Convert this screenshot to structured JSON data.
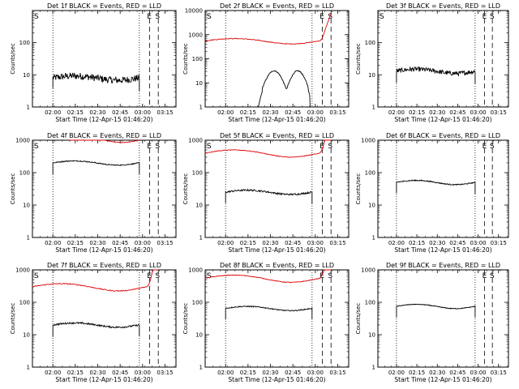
{
  "chart_data": [
    {
      "type": "line",
      "title": "Det 1f BLACK = Events, RED = LLD",
      "xlabel": "Start Time (12-Apr-15 01:46:20)",
      "ylabel": "Counts/sec",
      "xlim": [
        0,
        5760
      ],
      "ylim": [
        1,
        1000
      ],
      "yscale": "log",
      "ytick_labels": [
        "1",
        "10",
        "100"
      ],
      "xtick_labels": [
        "02:00",
        "02:15",
        "02:30",
        "02:45",
        "03:00",
        "03:15"
      ],
      "xticks": [
        820,
        1720,
        2620,
        3520,
        4420,
        5320
      ],
      "vlines": {
        "dotted": [
          820,
          4290
        ],
        "dashed": [
          0,
          4700,
          5050
        ],
        "dashdot": []
      },
      "markers": [
        {
          "label": "S",
          "x": 0
        },
        {
          "label": "E",
          "x": 4530
        },
        {
          "label": "S",
          "x": 4860
        }
      ],
      "series": [
        {
          "name": "Events",
          "color": "#000000",
          "segments": [
            {
              "x0": 820,
              "x1": 4290,
              "level": 8,
              "noise": 0.22,
              "shape": "flat_end"
            }
          ]
        }
      ]
    },
    {
      "type": "line",
      "title": "Det 2f BLACK = Events, RED = LLD",
      "xlabel": "Start Time (12-Apr-15 01:46:20)",
      "ylabel": "Counts/sec",
      "xlim": [
        0,
        5760
      ],
      "ylim": [
        1,
        10000
      ],
      "yscale": "log",
      "ytick_labels": [
        "1",
        "10",
        "100",
        "1000",
        "10000"
      ],
      "xtick_labels": [
        "02:00",
        "02:15",
        "02:30",
        "02:45",
        "03:00",
        "03:15"
      ],
      "xticks": [
        820,
        1720,
        2620,
        3520,
        4420,
        5320
      ],
      "vlines": {
        "dotted": [
          820,
          4290
        ],
        "dashed": [
          0,
          4700,
          5050
        ],
        "dashdot": []
      },
      "markers": [
        {
          "label": "S",
          "x": 0
        },
        {
          "label": "E",
          "x": 4530
        },
        {
          "label": "S",
          "x": 4860
        }
      ],
      "series": [
        {
          "name": "Events",
          "color": "#000000",
          "segments": [
            {
              "x0": 1420,
              "x1": 4290,
              "level": 30,
              "noise": 0.04,
              "shape": "double_hump"
            }
          ]
        },
        {
          "name": "LLD",
          "color": "#dd0000",
          "segments": [
            {
              "x0": 0,
              "x1": 5050,
              "level": 550,
              "noise": 0.03,
              "shape": "lld_rise"
            }
          ]
        }
      ]
    },
    {
      "type": "line",
      "title": "Det 3f BLACK = Events, RED = LLD",
      "xlabel": "Start Time (12-Apr-15 01:46:20)",
      "ylabel": "Counts/sec",
      "xlim": [
        0,
        5760
      ],
      "ylim": [
        1,
        1000
      ],
      "yscale": "log",
      "ytick_labels": [
        "1",
        "10",
        "100"
      ],
      "xtick_labels": [
        "02:00",
        "02:15",
        "02:30",
        "02:45",
        "03:00",
        "03:15"
      ],
      "xticks": [
        820,
        1720,
        2620,
        3520,
        4420,
        5320
      ],
      "vlines": {
        "dotted": [
          820,
          4290
        ],
        "dashed": [
          0,
          4700,
          5050
        ],
        "dashdot": []
      },
      "markers": [
        {
          "label": "S",
          "x": 0
        },
        {
          "label": "E",
          "x": 4530
        },
        {
          "label": "S",
          "x": 4860
        }
      ],
      "series": [
        {
          "name": "Events",
          "color": "#000000",
          "segments": [
            {
              "x0": 820,
              "x1": 4290,
              "level": 13,
              "noise": 0.14,
              "shape": "flat_end"
            }
          ]
        }
      ]
    },
    {
      "type": "line",
      "title": "Det 4f BLACK = Events, RED = LLD",
      "xlabel": "Start Time (12-Apr-15 01:46:20)",
      "ylabel": "Counts/sec",
      "xlim": [
        0,
        5760
      ],
      "ylim": [
        1,
        1000
      ],
      "yscale": "log",
      "ytick_labels": [
        "1",
        "10",
        "100",
        "1000"
      ],
      "xtick_labels": [
        "02:00",
        "02:15",
        "02:30",
        "02:45",
        "03:00",
        "03:15"
      ],
      "xticks": [
        820,
        1720,
        2620,
        3520,
        4420,
        5320
      ],
      "vlines": {
        "dotted": [
          820,
          4290
        ],
        "dashed": [
          0,
          4700,
          5050
        ],
        "dashdot": []
      },
      "markers": [
        {
          "label": "S",
          "x": 0
        },
        {
          "label": "E",
          "x": 4530
        },
        {
          "label": "S",
          "x": 4860
        }
      ],
      "series": [
        {
          "name": "Events",
          "color": "#000000",
          "segments": [
            {
              "x0": 820,
              "x1": 4290,
              "level": 200,
              "noise": 0.03,
              "shape": "flat_end"
            }
          ]
        },
        {
          "name": "LLD",
          "color": "#dd0000",
          "segments": [
            {
              "x0": 1500,
              "x1": 4290,
              "level": 1000,
              "noise": 0.01,
              "shape": "flat"
            }
          ]
        }
      ]
    },
    {
      "type": "line",
      "title": "Det 5f BLACK = Events, RED = LLD",
      "xlabel": "Start Time (12-Apr-15 01:46:20)",
      "ylabel": "Counts/sec",
      "xlim": [
        0,
        5760
      ],
      "ylim": [
        1,
        1000
      ],
      "yscale": "log",
      "ytick_labels": [
        "1",
        "10",
        "100",
        "1000"
      ],
      "xtick_labels": [
        "02:00",
        "02:15",
        "02:30",
        "02:45",
        "03:00",
        "03:15"
      ],
      "xticks": [
        820,
        1720,
        2620,
        3520,
        4420,
        5320
      ],
      "vlines": {
        "dotted": [
          820,
          4290
        ],
        "dashed": [
          0,
          4700,
          5050
        ],
        "dashdot": []
      },
      "markers": [
        {
          "label": "S",
          "x": 0
        },
        {
          "label": "E",
          "x": 4530
        },
        {
          "label": "S",
          "x": 4860
        }
      ],
      "series": [
        {
          "name": "Events",
          "color": "#000000",
          "segments": [
            {
              "x0": 820,
              "x1": 4290,
              "level": 25,
              "noise": 0.05,
              "shape": "flat_end"
            }
          ]
        },
        {
          "name": "LLD",
          "color": "#dd0000",
          "segments": [
            {
              "x0": 0,
              "x1": 5050,
              "level": 400,
              "noise": 0.02,
              "shape": "lld_rise"
            }
          ]
        }
      ]
    },
    {
      "type": "line",
      "title": "Det 6f BLACK = Events, RED = LLD",
      "xlabel": "Start Time (12-Apr-15 01:46:20)",
      "ylabel": "Counts/sec",
      "xlim": [
        0,
        5760
      ],
      "ylim": [
        1,
        1000
      ],
      "yscale": "log",
      "ytick_labels": [
        "1",
        "10",
        "100",
        "1000"
      ],
      "xtick_labels": [
        "02:00",
        "02:15",
        "02:30",
        "02:45",
        "03:00",
        "03:15"
      ],
      "xticks": [
        820,
        1720,
        2620,
        3520,
        4420,
        5320
      ],
      "vlines": {
        "dotted": [
          820,
          4290
        ],
        "dashed": [
          0,
          4700,
          5050
        ],
        "dashdot": []
      },
      "markers": [
        {
          "label": "E",
          "x": 4530
        },
        {
          "label": "S",
          "x": 4860
        }
      ],
      "series": [
        {
          "name": "Events",
          "color": "#000000",
          "segments": [
            {
              "x0": 820,
              "x1": 4290,
              "level": 50,
              "noise": 0.03,
              "shape": "flat_end"
            }
          ]
        }
      ]
    },
    {
      "type": "line",
      "title": "Det 7f BLACK = Events, RED = LLD",
      "xlabel": "Start Time (12-Apr-15 01:46:20)",
      "ylabel": "Counts/sec",
      "xlim": [
        0,
        5760
      ],
      "ylim": [
        1,
        1000
      ],
      "yscale": "log",
      "ytick_labels": [
        "1",
        "10",
        "100",
        "1000"
      ],
      "xtick_labels": [
        "02:00",
        "02:15",
        "02:30",
        "02:45",
        "03:00",
        "03:15"
      ],
      "xticks": [
        820,
        1720,
        2620,
        3520,
        4420,
        5320
      ],
      "vlines": {
        "dotted": [
          820,
          4290
        ],
        "dashed": [
          0,
          4700,
          5050
        ],
        "dashdot": []
      },
      "markers": [
        {
          "label": "S",
          "x": 0
        },
        {
          "label": "E",
          "x": 4530
        },
        {
          "label": "S",
          "x": 4860
        }
      ],
      "series": [
        {
          "name": "Events",
          "color": "#000000",
          "segments": [
            {
              "x0": 820,
              "x1": 4290,
              "level": 20,
              "noise": 0.05,
              "shape": "flat_end"
            }
          ]
        },
        {
          "name": "LLD",
          "color": "#dd0000",
          "segments": [
            {
              "x0": 0,
              "x1": 5050,
              "level": 300,
              "noise": 0.03,
              "shape": "lld_rise"
            }
          ]
        }
      ]
    },
    {
      "type": "line",
      "title": "Det 8f BLACK = Events, RED = LLD",
      "xlabel": "Start Time (12-Apr-15 01:46:20)",
      "ylabel": "Counts/sec",
      "xlim": [
        0,
        5760
      ],
      "ylim": [
        1,
        1000
      ],
      "yscale": "log",
      "ytick_labels": [
        "1",
        "10",
        "100",
        "1000"
      ],
      "xtick_labels": [
        "02:00",
        "02:15",
        "02:30",
        "02:45",
        "03:00",
        "03:15"
      ],
      "xticks": [
        820,
        1720,
        2620,
        3520,
        4420,
        5320
      ],
      "vlines": {
        "dotted": [
          820,
          4290
        ],
        "dashed": [
          0,
          4700,
          5050
        ],
        "dashdot": []
      },
      "markers": [
        {
          "label": "S",
          "x": 0
        },
        {
          "label": "E",
          "x": 4530
        },
        {
          "label": "S",
          "x": 4860
        }
      ],
      "series": [
        {
          "name": "Events",
          "color": "#000000",
          "segments": [
            {
              "x0": 820,
              "x1": 4290,
              "level": 65,
              "noise": 0.03,
              "shape": "flat_end"
            }
          ]
        },
        {
          "name": "LLD",
          "color": "#dd0000",
          "segments": [
            {
              "x0": 0,
              "x1": 5050,
              "level": 550,
              "noise": 0.02,
              "shape": "lld_rise"
            }
          ]
        }
      ]
    },
    {
      "type": "line",
      "title": "Det 9f BLACK = Events, RED = LLD",
      "xlabel": "Start Time (12-Apr-15 01:46:20)",
      "ylabel": "Counts/sec",
      "xlim": [
        0,
        5760
      ],
      "ylim": [
        1,
        1000
      ],
      "yscale": "log",
      "ytick_labels": [
        "1",
        "10",
        "100",
        "1000"
      ],
      "xtick_labels": [
        "02:00",
        "02:15",
        "02:30",
        "02:45",
        "03:00",
        "03:15"
      ],
      "xticks": [
        820,
        1720,
        2620,
        3520,
        4420,
        5320
      ],
      "vlines": {
        "dotted": [
          820,
          4290
        ],
        "dashed": [
          0,
          4700,
          5050
        ],
        "dashdot": []
      },
      "markers": [
        {
          "label": "E",
          "x": 4530
        },
        {
          "label": "S",
          "x": 4860
        }
      ],
      "series": [
        {
          "name": "Events",
          "color": "#000000",
          "segments": [
            {
              "x0": 820,
              "x1": 4290,
              "level": 75,
              "noise": 0.02,
              "shape": "flat_end"
            }
          ]
        }
      ]
    }
  ]
}
